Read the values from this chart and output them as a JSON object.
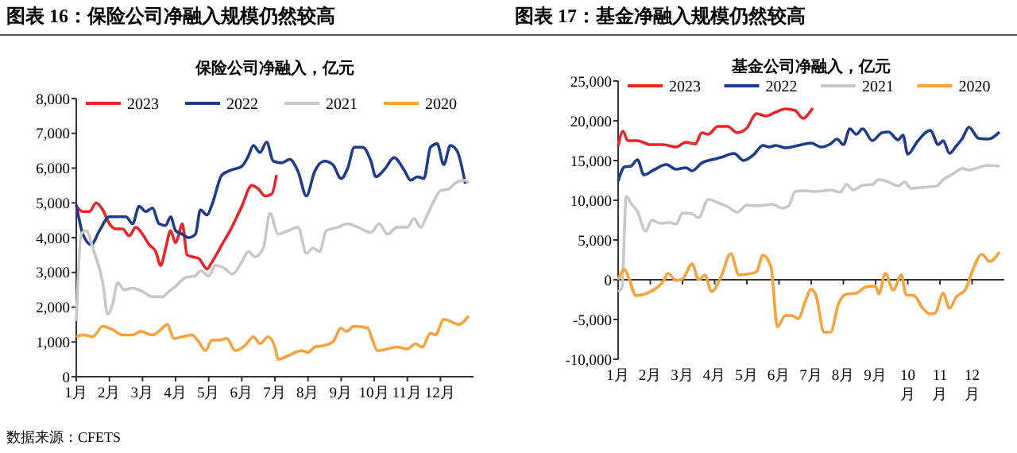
{
  "chart_data": [
    {
      "type": "line",
      "title": "图表 16：保险公司净融入规模仍然较高",
      "subtitle": "保险公司净融入，亿元",
      "annotations": [
        "数据来源：CFETS"
      ],
      "legend": "top",
      "grid": false,
      "xlim": [
        1,
        13
      ],
      "xticks": [
        {
          "value": 1,
          "label": "1月"
        },
        {
          "value": 2,
          "label": "2月"
        },
        {
          "value": 3,
          "label": "3月"
        },
        {
          "value": 4,
          "label": "4月"
        },
        {
          "value": 5,
          "label": "5月"
        },
        {
          "value": 6,
          "label": "6月"
        },
        {
          "value": 7,
          "label": "7月"
        },
        {
          "value": 8,
          "label": "8月"
        },
        {
          "value": 9,
          "label": "9月"
        },
        {
          "value": 10,
          "label": "10月"
        },
        {
          "value": 11,
          "label": "11月"
        },
        {
          "value": 12,
          "label": "12月"
        }
      ],
      "ylim": [
        0,
        8000
      ],
      "yticks": [
        {
          "value": 0,
          "label": "0"
        },
        {
          "value": 1000,
          "label": "1,000"
        },
        {
          "value": 2000,
          "label": "2,000"
        },
        {
          "value": 3000,
          "label": "3,000"
        },
        {
          "value": 4000,
          "label": "4,000"
        },
        {
          "value": 5000,
          "label": "5,000"
        },
        {
          "value": 6000,
          "label": "6,000"
        },
        {
          "value": 7000,
          "label": "7,000"
        },
        {
          "value": 8000,
          "label": "8,000"
        }
      ],
      "series": [
        {
          "name": "2023",
          "color": "#e8262a",
          "x": [
            1.0,
            1.2,
            1.4,
            1.6,
            1.8,
            2.0,
            2.2,
            2.4,
            2.6,
            2.8,
            3.0,
            3.2,
            3.4,
            3.55,
            3.7,
            3.85,
            4.0,
            4.1,
            4.2,
            4.35,
            4.5,
            4.7,
            4.95,
            5.1,
            5.4,
            5.7,
            6.0,
            6.3,
            6.5,
            6.7,
            6.9,
            7.05
          ],
          "values": [
            4900,
            4750,
            4750,
            5000,
            4800,
            4400,
            4250,
            4250,
            4050,
            4300,
            4100,
            3800,
            3600,
            3200,
            3700,
            4200,
            3850,
            4100,
            4400,
            3500,
            3450,
            3400,
            3100,
            3300,
            3800,
            4300,
            4900,
            5500,
            5400,
            5200,
            5250,
            5800
          ]
        },
        {
          "name": "2022",
          "color": "#1f3c8c",
          "x": [
            1.0,
            1.2,
            1.45,
            1.7,
            2.0,
            2.3,
            2.5,
            2.7,
            2.9,
            3.1,
            3.3,
            3.5,
            3.7,
            3.85,
            4.0,
            4.2,
            4.4,
            4.6,
            4.75,
            4.95,
            5.1,
            5.4,
            5.7,
            6.0,
            6.2,
            6.35,
            6.55,
            6.75,
            6.95,
            7.2,
            7.45,
            7.7,
            7.95,
            8.2,
            8.5,
            8.75,
            9.0,
            9.2,
            9.4,
            9.65,
            9.9,
            10.05,
            10.3,
            10.6,
            10.9,
            11.1,
            11.3,
            11.5,
            11.7,
            11.9,
            12.1,
            12.3,
            12.5,
            12.75
          ],
          "values": [
            4950,
            4100,
            3800,
            4200,
            4600,
            4600,
            4600,
            4400,
            4900,
            4750,
            4850,
            4400,
            4350,
            4600,
            4200,
            4100,
            4000,
            4100,
            4800,
            4650,
            4950,
            5800,
            5950,
            6050,
            6350,
            6650,
            6450,
            6750,
            6200,
            6150,
            6250,
            5900,
            5200,
            5900,
            6200,
            6100,
            5700,
            6000,
            6600,
            6600,
            6200,
            5750,
            5950,
            6300,
            5950,
            5650,
            5750,
            5700,
            6600,
            6700,
            6100,
            6650,
            6500,
            5550
          ]
        },
        {
          "name": "2021",
          "color": "#c8c8c8",
          "x": [
            1.0,
            1.15,
            1.3,
            1.5,
            1.8,
            1.95,
            2.1,
            2.25,
            2.45,
            2.7,
            3.0,
            3.3,
            3.6,
            3.8,
            4.0,
            4.3,
            4.6,
            4.75,
            5.0,
            5.2,
            5.5,
            5.7,
            6.0,
            6.2,
            6.4,
            6.65,
            6.85,
            7.1,
            7.4,
            7.7,
            7.95,
            8.15,
            8.35,
            8.55,
            8.9,
            9.2,
            9.5,
            9.9,
            10.15,
            10.4,
            10.7,
            11.0,
            11.2,
            11.4,
            11.6,
            11.8,
            12.0,
            12.25,
            12.5,
            12.75,
            12.85
          ],
          "values": [
            1600,
            4100,
            4200,
            3700,
            2700,
            1800,
            2100,
            2700,
            2500,
            2550,
            2450,
            2300,
            2300,
            2450,
            2600,
            2850,
            2900,
            3050,
            2900,
            3200,
            3100,
            2950,
            3300,
            3600,
            3450,
            3700,
            4700,
            4100,
            4200,
            4300,
            3550,
            3700,
            3600,
            4200,
            4300,
            4400,
            4300,
            4150,
            4400,
            4100,
            4300,
            4300,
            4550,
            4300,
            4650,
            5050,
            5350,
            5400,
            5600,
            5650,
            5550
          ]
        },
        {
          "name": "2020",
          "color": "#f7a23c",
          "x": [
            1.0,
            1.2,
            1.5,
            1.8,
            2.1,
            2.4,
            2.7,
            2.95,
            3.3,
            3.55,
            3.75,
            3.95,
            4.2,
            4.5,
            4.7,
            4.9,
            5.1,
            5.3,
            5.55,
            5.8,
            6.1,
            6.35,
            6.55,
            6.8,
            7.0,
            7.1,
            7.4,
            7.8,
            8.0,
            8.2,
            8.5,
            8.75,
            9.0,
            9.15,
            9.4,
            9.8,
            9.95,
            10.1,
            10.4,
            10.7,
            11.0,
            11.25,
            11.45,
            11.7,
            11.85,
            12.1,
            12.4,
            12.55,
            12.85
          ],
          "values": [
            1150,
            1200,
            1150,
            1450,
            1350,
            1200,
            1200,
            1300,
            1200,
            1350,
            1500,
            1100,
            1150,
            1200,
            1000,
            750,
            1050,
            1050,
            1100,
            750,
            900,
            1150,
            950,
            1150,
            850,
            500,
            600,
            750,
            700,
            850,
            900,
            1000,
            1400,
            1300,
            1450,
            1400,
            1050,
            750,
            800,
            850,
            800,
            950,
            850,
            1250,
            1200,
            1650,
            1550,
            1500,
            1750
          ]
        }
      ]
    },
    {
      "type": "line",
      "title": "图表 17：基金净融入规模仍然较高",
      "subtitle": "基金公司净融入，亿元",
      "legend": "top",
      "grid": false,
      "ref_lines": [
        {
          "axis": "y",
          "value": 0,
          "color": "#333333"
        }
      ],
      "xlim": [
        1,
        13
      ],
      "xticks": [
        {
          "value": 1,
          "label": "1月"
        },
        {
          "value": 2,
          "label": "2月"
        },
        {
          "value": 3,
          "label": "3月"
        },
        {
          "value": 4,
          "label": "4月"
        },
        {
          "value": 5,
          "label": "5月"
        },
        {
          "value": 6,
          "label": "6月"
        },
        {
          "value": 7,
          "label": "7月"
        },
        {
          "value": 8,
          "label": "8月"
        },
        {
          "value": 9,
          "label": "9月"
        },
        {
          "value": 10,
          "label": "10月"
        },
        {
          "value": 11,
          "label": "11月"
        },
        {
          "value": 12,
          "label": "12月"
        }
      ],
      "ylim": [
        -10000,
        25000
      ],
      "yticks": [
        {
          "value": -10000,
          "label": "-10,000"
        },
        {
          "value": -5000,
          "label": "-5,000"
        },
        {
          "value": 0,
          "label": "0"
        },
        {
          "value": 5000,
          "label": "5,000"
        },
        {
          "value": 10000,
          "label": "10,000"
        },
        {
          "value": 15000,
          "label": "15,000"
        },
        {
          "value": 20000,
          "label": "20,000"
        },
        {
          "value": 25000,
          "label": "25,000"
        }
      ],
      "series": [
        {
          "name": "2023",
          "color": "#e8262a",
          "x": [
            1.0,
            1.15,
            1.3,
            1.6,
            2.0,
            2.4,
            2.8,
            3.1,
            3.4,
            3.6,
            3.8,
            4.1,
            4.4,
            4.7,
            5.0,
            5.3,
            5.6,
            5.9,
            6.2,
            6.5,
            6.75,
            6.9,
            7.05
          ],
          "values": [
            16800,
            18700,
            17500,
            17500,
            17000,
            17000,
            16700,
            17300,
            17100,
            18500,
            18300,
            19300,
            19300,
            18500,
            19100,
            20900,
            20600,
            21100,
            21500,
            21300,
            20300,
            20800,
            21600
          ]
        },
        {
          "name": "2022",
          "color": "#1f3c8c",
          "x": [
            1.0,
            1.2,
            1.4,
            1.6,
            1.8,
            2.1,
            2.5,
            2.8,
            3.1,
            3.3,
            3.6,
            3.9,
            4.2,
            4.6,
            4.9,
            5.2,
            5.5,
            5.7,
            5.9,
            6.2,
            6.6,
            7.0,
            7.3,
            7.6,
            7.8,
            8.0,
            8.2,
            8.4,
            8.6,
            8.9,
            9.2,
            9.4,
            9.7,
            9.85,
            10.0,
            10.3,
            10.7,
            10.95,
            11.1,
            11.3,
            11.5,
            11.7,
            11.9,
            12.2,
            12.5,
            12.85
          ],
          "values": [
            12400,
            14200,
            14300,
            15100,
            13200,
            13800,
            14500,
            13900,
            14100,
            13700,
            14700,
            15100,
            15400,
            15900,
            15000,
            15700,
            16900,
            16700,
            16900,
            16600,
            16900,
            17200,
            16700,
            17100,
            17700,
            17000,
            19000,
            18300,
            19000,
            17500,
            18500,
            18600,
            17600,
            18200,
            15800,
            17400,
            18800,
            17000,
            17500,
            15900,
            16800,
            17800,
            19200,
            17800,
            17700,
            18600
          ]
        },
        {
          "name": "2021",
          "color": "#c8c8c8",
          "x": [
            1.0,
            1.12,
            1.25,
            1.4,
            1.6,
            1.85,
            2.05,
            2.3,
            2.6,
            2.8,
            3.0,
            3.3,
            3.5,
            3.8,
            4.1,
            4.4,
            4.7,
            5.0,
            5.3,
            5.6,
            5.8,
            6.1,
            6.3,
            6.5,
            6.8,
            7.1,
            7.4,
            7.6,
            7.9,
            8.1,
            8.3,
            8.6,
            8.9,
            9.1,
            9.4,
            9.7,
            9.9,
            10.1,
            10.4,
            10.7,
            10.9,
            11.1,
            11.4,
            11.7,
            11.9,
            12.1,
            12.5,
            12.85
          ],
          "values": [
            -1500,
            -1000,
            10500,
            9600,
            8600,
            6100,
            7500,
            7100,
            7200,
            7000,
            8400,
            8300,
            7800,
            10100,
            9700,
            9200,
            8500,
            9400,
            9300,
            9400,
            9500,
            9000,
            9300,
            11100,
            11200,
            11100,
            11200,
            11300,
            11000,
            12000,
            11300,
            11900,
            12000,
            12600,
            12300,
            11800,
            12300,
            11500,
            11600,
            11700,
            11800,
            12600,
            13300,
            14000,
            13800,
            14000,
            14400,
            14300
          ]
        },
        {
          "name": "2020",
          "color": "#f7a23c",
          "x": [
            1.0,
            1.2,
            1.35,
            1.55,
            1.9,
            2.2,
            2.4,
            2.55,
            2.8,
            3.0,
            3.3,
            3.5,
            3.7,
            3.9,
            4.2,
            4.5,
            4.75,
            5.0,
            5.3,
            5.5,
            5.75,
            5.95,
            6.2,
            6.4,
            6.6,
            6.8,
            7.0,
            7.15,
            7.4,
            7.6,
            7.85,
            8.1,
            8.4,
            8.7,
            9.0,
            9.1,
            9.3,
            9.55,
            9.8,
            9.95,
            10.2,
            10.45,
            10.7,
            10.85,
            11.1,
            11.3,
            11.5,
            11.8,
            12.0,
            12.3,
            12.55,
            12.85
          ],
          "values": [
            0,
            1300,
            0,
            -2000,
            -1700,
            -1000,
            -200,
            800,
            -100,
            100,
            2000,
            0,
            600,
            -1500,
            400,
            3300,
            600,
            700,
            1000,
            3100,
            1600,
            -5900,
            -4500,
            -4500,
            -4900,
            -2900,
            -1200,
            -2000,
            -6600,
            -6600,
            -3000,
            -1800,
            -1700,
            -900,
            -800,
            -1800,
            800,
            -1300,
            600,
            -1900,
            -2000,
            -3500,
            -4300,
            -4200,
            -1700,
            -3600,
            -2200,
            -1200,
            1000,
            3200,
            2300,
            3500
          ]
        }
      ]
    }
  ]
}
